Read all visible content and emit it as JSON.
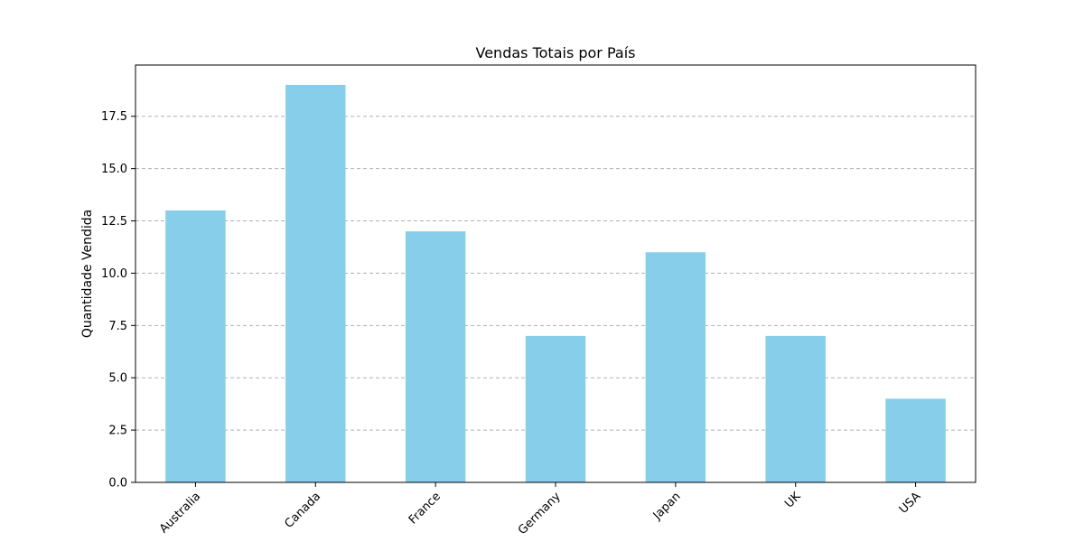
{
  "chart_data": {
    "type": "bar",
    "title": "Vendas Totais por País",
    "xlabel": "",
    "ylabel": "Quantidade Vendida",
    "categories": [
      "Australia",
      "Canada",
      "France",
      "Germany",
      "Japan",
      "UK",
      "USA"
    ],
    "values": [
      13,
      19,
      12,
      7,
      11,
      7,
      4
    ],
    "ylim": [
      0,
      19.95
    ],
    "yticks": [
      0.0,
      2.5,
      5.0,
      7.5,
      10.0,
      12.5,
      15.0,
      17.5
    ],
    "ytick_labels": [
      "0.0",
      "2.5",
      "5.0",
      "7.5",
      "10.0",
      "12.5",
      "15.0",
      "17.5"
    ],
    "grid": "y-dashed",
    "bar_color": "#87CEEB",
    "legend": "none"
  }
}
